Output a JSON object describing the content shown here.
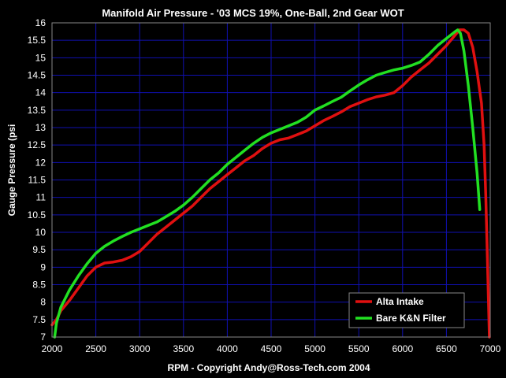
{
  "chart_data": {
    "type": "line",
    "title": "Manifold Air Pressure - '03 MCS 19%, One-Ball, 2nd Gear WOT",
    "xlabel": "RPM  -  Copyright Andy@Ross-Tech.com 2004",
    "ylabel": "Gauge Pressure (psi",
    "xlim": [
      2000,
      7000
    ],
    "ylim": [
      7,
      16
    ],
    "xticks": [
      "2000",
      "2500",
      "3000",
      "3500",
      "4000",
      "4500",
      "5000",
      "5500",
      "6000",
      "6500",
      "7000"
    ],
    "yticks": [
      "7",
      "7.5",
      "8",
      "8.5",
      "9",
      "9.5",
      "10",
      "10.5",
      "11",
      "11.5",
      "12",
      "12.5",
      "13",
      "13.5",
      "14",
      "14.5",
      "15",
      "15.5",
      "16"
    ],
    "grid": true,
    "legend_position": "bottom-right",
    "series": [
      {
        "name": "Alta Intake",
        "color": "#e01010",
        "points": [
          [
            2000,
            7.35
          ],
          [
            2050,
            7.5
          ],
          [
            2100,
            7.75
          ],
          [
            2200,
            8.05
          ],
          [
            2300,
            8.4
          ],
          [
            2400,
            8.75
          ],
          [
            2500,
            9.0
          ],
          [
            2600,
            9.12
          ],
          [
            2700,
            9.15
          ],
          [
            2800,
            9.2
          ],
          [
            2900,
            9.3
          ],
          [
            3000,
            9.45
          ],
          [
            3100,
            9.7
          ],
          [
            3200,
            9.95
          ],
          [
            3300,
            10.15
          ],
          [
            3400,
            10.35
          ],
          [
            3500,
            10.55
          ],
          [
            3600,
            10.75
          ],
          [
            3700,
            11.0
          ],
          [
            3800,
            11.25
          ],
          [
            3900,
            11.45
          ],
          [
            4000,
            11.65
          ],
          [
            4100,
            11.85
          ],
          [
            4200,
            12.05
          ],
          [
            4300,
            12.2
          ],
          [
            4400,
            12.4
          ],
          [
            4500,
            12.55
          ],
          [
            4600,
            12.65
          ],
          [
            4700,
            12.7
          ],
          [
            4800,
            12.8
          ],
          [
            4900,
            12.9
          ],
          [
            5000,
            13.05
          ],
          [
            5100,
            13.2
          ],
          [
            5200,
            13.32
          ],
          [
            5300,
            13.45
          ],
          [
            5400,
            13.6
          ],
          [
            5500,
            13.7
          ],
          [
            5600,
            13.8
          ],
          [
            5700,
            13.88
          ],
          [
            5800,
            13.93
          ],
          [
            5900,
            14.0
          ],
          [
            6000,
            14.2
          ],
          [
            6100,
            14.45
          ],
          [
            6200,
            14.65
          ],
          [
            6300,
            14.85
          ],
          [
            6400,
            15.1
          ],
          [
            6500,
            15.35
          ],
          [
            6600,
            15.65
          ],
          [
            6650,
            15.8
          ],
          [
            6700,
            15.8
          ],
          [
            6750,
            15.7
          ],
          [
            6800,
            15.3
          ],
          [
            6850,
            14.6
          ],
          [
            6900,
            13.7
          ],
          [
            6930,
            12.5
          ],
          [
            6950,
            11.0
          ],
          [
            6970,
            9.0
          ],
          [
            6990,
            7.0
          ]
        ]
      },
      {
        "name": "Bare K&N Filter",
        "color": "#22e022",
        "points": [
          [
            2030,
            7.0
          ],
          [
            2050,
            7.4
          ],
          [
            2100,
            7.85
          ],
          [
            2200,
            8.35
          ],
          [
            2300,
            8.75
          ],
          [
            2400,
            9.1
          ],
          [
            2500,
            9.4
          ],
          [
            2600,
            9.6
          ],
          [
            2700,
            9.75
          ],
          [
            2800,
            9.88
          ],
          [
            2900,
            10.0
          ],
          [
            3000,
            10.1
          ],
          [
            3100,
            10.2
          ],
          [
            3200,
            10.3
          ],
          [
            3300,
            10.45
          ],
          [
            3400,
            10.6
          ],
          [
            3500,
            10.78
          ],
          [
            3600,
            11.0
          ],
          [
            3700,
            11.25
          ],
          [
            3800,
            11.5
          ],
          [
            3900,
            11.7
          ],
          [
            4000,
            11.95
          ],
          [
            4100,
            12.15
          ],
          [
            4200,
            12.35
          ],
          [
            4300,
            12.55
          ],
          [
            4400,
            12.72
          ],
          [
            4500,
            12.85
          ],
          [
            4600,
            12.95
          ],
          [
            4700,
            13.05
          ],
          [
            4800,
            13.15
          ],
          [
            4900,
            13.3
          ],
          [
            5000,
            13.5
          ],
          [
            5100,
            13.62
          ],
          [
            5200,
            13.75
          ],
          [
            5300,
            13.87
          ],
          [
            5400,
            14.05
          ],
          [
            5500,
            14.22
          ],
          [
            5600,
            14.37
          ],
          [
            5700,
            14.5
          ],
          [
            5800,
            14.58
          ],
          [
            5900,
            14.65
          ],
          [
            6000,
            14.7
          ],
          [
            6100,
            14.78
          ],
          [
            6200,
            14.88
          ],
          [
            6300,
            15.1
          ],
          [
            6400,
            15.35
          ],
          [
            6500,
            15.55
          ],
          [
            6600,
            15.75
          ],
          [
            6630,
            15.8
          ],
          [
            6660,
            15.7
          ],
          [
            6700,
            15.2
          ],
          [
            6750,
            14.2
          ],
          [
            6800,
            13.0
          ],
          [
            6850,
            11.7
          ],
          [
            6880,
            10.65
          ]
        ]
      }
    ]
  }
}
